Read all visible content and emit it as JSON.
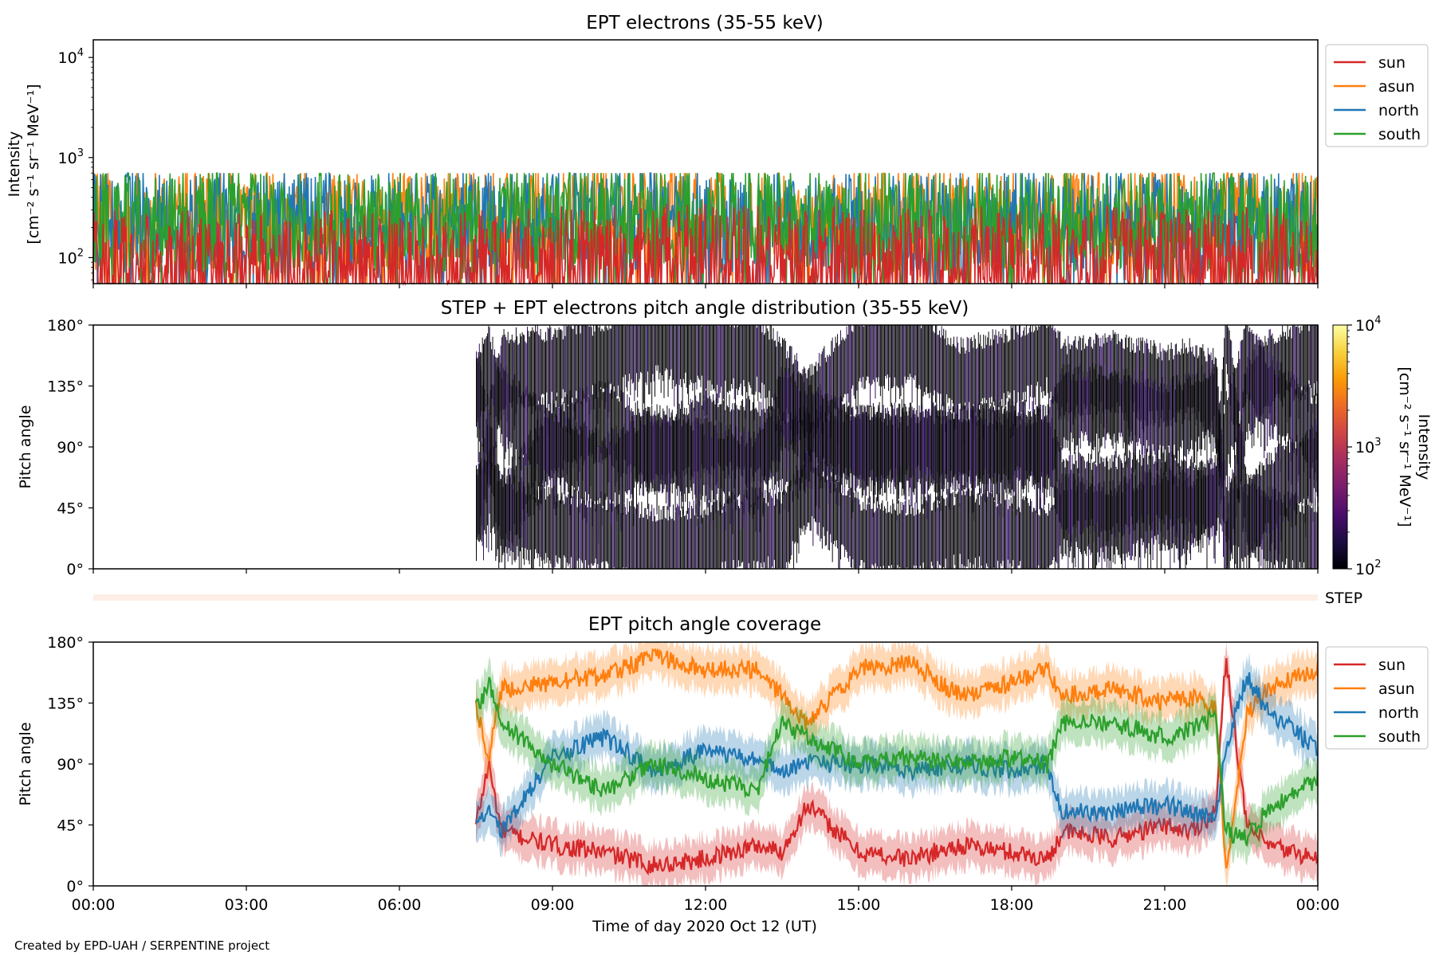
{
  "chart_data": [
    {
      "type": "line",
      "title": "EPT electrons (35-55 keV)",
      "ylabel": "Intensity",
      "yunit_html": "[cm⁻² s⁻¹ sr⁻¹ MeV⁻¹]",
      "yscale": "log",
      "ylim": [
        55,
        15000
      ],
      "yticks": [
        {
          "base": "10",
          "exp": "2",
          "value": 100
        },
        {
          "base": "10",
          "exp": "3",
          "value": 1000
        },
        {
          "base": "10",
          "exp": "4",
          "value": 10000
        }
      ],
      "xlim_hours": [
        0,
        24
      ],
      "legend": "outside-right-top",
      "series": [
        {
          "name": "sun",
          "color": "#d62728",
          "values": [
            {
              "t": "07:30",
              "v": 90
            },
            {
              "t": "10:00",
              "v": 110
            },
            {
              "t": "13:00",
              "v": 100
            },
            {
              "t": "16:00",
              "v": 95
            },
            {
              "t": "19:00",
              "v": 105
            },
            {
              "t": "22:00",
              "v": 100
            },
            {
              "t": "24:00",
              "v": 95
            }
          ]
        },
        {
          "name": "asun",
          "color": "#ff7f0e",
          "values": [
            {
              "t": "07:30",
              "v": 250
            },
            {
              "t": "10:00",
              "v": 280
            },
            {
              "t": "13:00",
              "v": 260
            },
            {
              "t": "16:00",
              "v": 240
            },
            {
              "t": "19:00",
              "v": 260
            },
            {
              "t": "22:00",
              "v": 250
            },
            {
              "t": "24:00",
              "v": 240
            }
          ]
        },
        {
          "name": "north",
          "color": "#1f77b4",
          "values": [
            {
              "t": "07:30",
              "v": 220
            },
            {
              "t": "10:00",
              "v": 240
            },
            {
              "t": "13:00",
              "v": 230
            },
            {
              "t": "16:00",
              "v": 220
            },
            {
              "t": "19:00",
              "v": 230
            },
            {
              "t": "22:00",
              "v": 220
            },
            {
              "t": "24:00",
              "v": 210
            }
          ]
        },
        {
          "name": "south",
          "color": "#2ca02c",
          "values": [
            {
              "t": "07:30",
              "v": 230
            },
            {
              "t": "10:00",
              "v": 260
            },
            {
              "t": "13:00",
              "v": 240
            },
            {
              "t": "16:00",
              "v": 230
            },
            {
              "t": "19:00",
              "v": 240
            },
            {
              "t": "22:00",
              "v": 230
            },
            {
              "t": "24:00",
              "v": 220
            }
          ]
        }
      ]
    },
    {
      "type": "heatmap",
      "title": "STEP + EPT electrons pitch angle distribution (35-55 keV)",
      "ylabel": "Pitch angle",
      "ylim": [
        0,
        180
      ],
      "yticks": [
        "0°",
        "45°",
        "90°",
        "135°",
        "180°"
      ],
      "xlim_hours": [
        0,
        24
      ],
      "data_start": "07:30",
      "colorbar": {
        "label": "Intensity",
        "unit_html": "[cm⁻² s⁻¹ sr⁻¹ MeV⁻¹]",
        "scale": "log",
        "range": [
          100,
          10000
        ],
        "ticks": [
          {
            "base": "10",
            "exp": "2"
          },
          {
            "base": "10",
            "exp": "3"
          },
          {
            "base": "10",
            "exp": "4"
          }
        ],
        "colormap": [
          "#000004",
          "#1b0c41",
          "#4a0c6b",
          "#781c6d",
          "#a52c60",
          "#cf4446",
          "#ed6925",
          "#fb9b06",
          "#f7d13d",
          "#fcffa4"
        ]
      }
    },
    {
      "type": "bar",
      "label": "STEP",
      "color": "#fdeee6"
    },
    {
      "type": "line",
      "title": "EPT pitch angle coverage",
      "ylabel": "Pitch angle",
      "ylim": [
        0,
        180
      ],
      "yticks": [
        "0°",
        "45°",
        "90°",
        "135°",
        "180°"
      ],
      "xlim_hours": [
        0,
        24
      ],
      "xticks": [
        "00:00",
        "03:00",
        "06:00",
        "09:00",
        "12:00",
        "15:00",
        "18:00",
        "21:00",
        "00:00"
      ],
      "xlabel": "Time of day 2020 Oct 12 (UT)",
      "legend": "outside-right-top",
      "series": [
        {
          "name": "sun",
          "color": "#d62728",
          "x": [
            7.5,
            7.75,
            8.0,
            9.0,
            10.0,
            11.0,
            12.0,
            13.0,
            13.5,
            14.0,
            15.0,
            16.0,
            17.0,
            18.0,
            18.7,
            19.0,
            20.0,
            21.0,
            21.5,
            22.0,
            22.2,
            22.6,
            23.0,
            24.0
          ],
          "values": [
            45,
            90,
            40,
            30,
            25,
            15,
            20,
            30,
            25,
            60,
            25,
            20,
            30,
            25,
            20,
            40,
            35,
            45,
            40,
            55,
            170,
            45,
            30,
            20
          ]
        },
        {
          "name": "asun",
          "color": "#ff7f0e",
          "x": [
            7.5,
            7.75,
            8.0,
            9.0,
            10.0,
            11.0,
            12.0,
            13.0,
            13.5,
            14.0,
            15.0,
            16.0,
            17.0,
            18.0,
            18.7,
            19.0,
            20.0,
            21.0,
            21.5,
            22.0,
            22.2,
            22.6,
            23.0,
            24.0
          ],
          "values": [
            135,
            95,
            145,
            150,
            155,
            170,
            160,
            160,
            140,
            120,
            160,
            165,
            140,
            150,
            160,
            140,
            145,
            135,
            140,
            130,
            10,
            125,
            145,
            160
          ]
        },
        {
          "name": "north",
          "color": "#1f77b4",
          "x": [
            7.5,
            7.75,
            8.0,
            9.0,
            10.0,
            11.0,
            12.0,
            13.0,
            13.5,
            14.0,
            15.0,
            16.0,
            17.0,
            18.0,
            18.7,
            19.0,
            20.0,
            21.0,
            21.5,
            22.0,
            22.2,
            22.6,
            23.0,
            24.0
          ],
          "values": [
            45,
            60,
            40,
            95,
            110,
            85,
            100,
            95,
            85,
            90,
            90,
            85,
            90,
            85,
            90,
            55,
            55,
            60,
            55,
            50,
            100,
            155,
            130,
            100
          ]
        },
        {
          "name": "south",
          "color": "#2ca02c",
          "x": [
            7.5,
            7.75,
            8.0,
            9.0,
            10.0,
            11.0,
            12.0,
            13.0,
            13.5,
            14.0,
            15.0,
            16.0,
            17.0,
            18.0,
            18.7,
            19.0,
            20.0,
            21.0,
            21.5,
            22.0,
            22.2,
            22.6,
            23.0,
            24.0
          ],
          "values": [
            130,
            150,
            120,
            90,
            70,
            90,
            80,
            70,
            120,
            110,
            90,
            95,
            90,
            95,
            90,
            120,
            120,
            110,
            115,
            125,
            40,
            35,
            55,
            80
          ]
        }
      ]
    }
  ],
  "footer": "Created by EPD-UAH / SERPENTINE project"
}
